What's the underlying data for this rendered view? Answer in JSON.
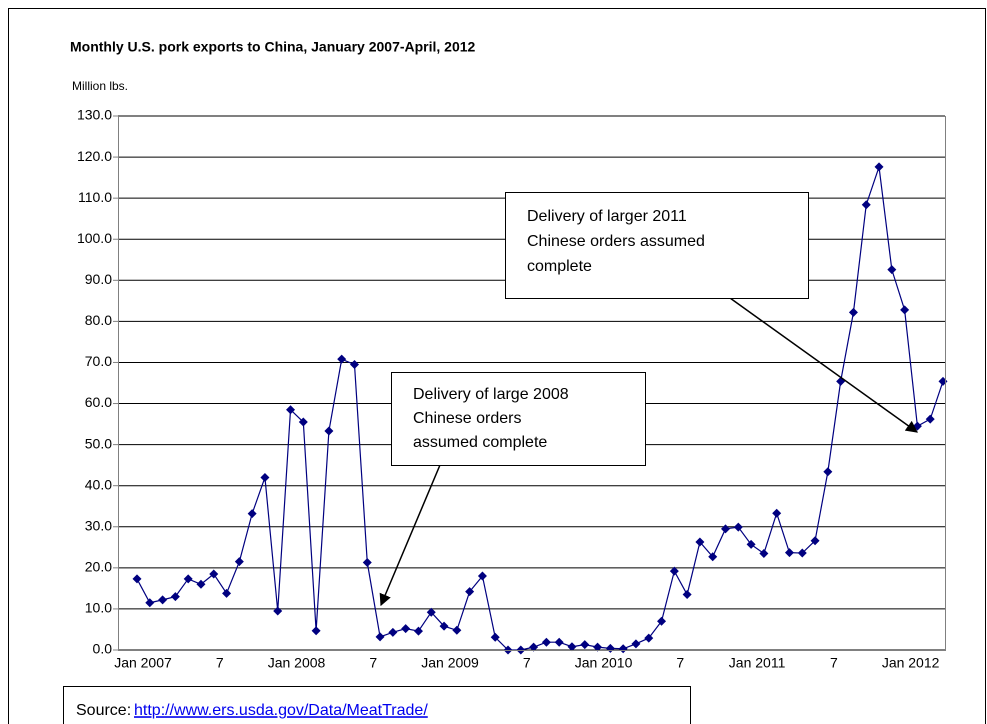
{
  "chart_data": {
    "type": "line",
    "title": "Monthly U.S. pork exports to China, January 2007-April, 2012",
    "ylabel": "Million lbs.",
    "categories": [
      "Jan 2007",
      null,
      null,
      null,
      null,
      null,
      "7",
      null,
      null,
      null,
      null,
      null,
      "Jan 2008",
      null,
      null,
      null,
      null,
      null,
      "7",
      null,
      null,
      null,
      null,
      null,
      "Jan 2009",
      null,
      null,
      null,
      null,
      null,
      "7",
      null,
      null,
      null,
      null,
      null,
      "Jan 2010",
      null,
      null,
      null,
      null,
      null,
      "7",
      null,
      null,
      null,
      null,
      null,
      "Jan 2011",
      null,
      null,
      null,
      null,
      null,
      "7",
      null,
      null,
      null,
      null,
      null,
      "Jan 2012",
      null,
      null,
      null
    ],
    "series": [
      {
        "color": "#000080",
        "values": [
          17.3,
          11.5,
          12.2,
          13.0,
          17.3,
          16.0,
          18.5,
          13.8,
          21.5,
          33.2,
          42.0,
          9.5,
          58.5,
          55.5,
          4.7,
          53.3,
          70.8,
          69.5,
          21.3,
          3.2,
          4.3,
          5.2,
          4.6,
          9.2,
          5.8,
          4.8,
          14.2,
          18.0,
          3.1,
          0.0,
          0.0,
          0.7,
          1.9,
          1.9,
          0.8,
          1.3,
          0.7,
          0.4,
          0.3,
          1.5,
          2.9,
          7.0,
          19.2,
          13.5,
          26.3,
          22.7,
          29.5,
          29.9,
          25.7,
          23.5,
          33.3,
          23.7,
          23.6,
          26.6,
          43.4,
          65.4,
          82.2,
          108.4,
          117.6,
          92.6,
          82.8,
          54.5,
          56.2,
          65.4
        ]
      }
    ],
    "ylim": [
      0,
      130
    ],
    "yticks": [
      {
        "value": 0,
        "label": "0.0"
      },
      {
        "value": 10,
        "label": "10.0"
      },
      {
        "value": 20,
        "label": "20.0"
      },
      {
        "value": 30,
        "label": "30.0"
      },
      {
        "value": 40,
        "label": "40.0"
      },
      {
        "value": 50,
        "label": "50.0"
      },
      {
        "value": 60,
        "label": "60.0"
      },
      {
        "value": 70,
        "label": "70.0"
      },
      {
        "value": 80,
        "label": "80.0"
      },
      {
        "value": 90,
        "label": "90.0"
      },
      {
        "value": 100,
        "label": "100.0"
      },
      {
        "value": 110,
        "label": "110.0"
      },
      {
        "value": 120,
        "label": "120.0"
      },
      {
        "value": 130,
        "label": "130.0"
      }
    ],
    "grid": true,
    "annotations": [
      {
        "lines": [
          "Delivery of large 2008",
          "Chinese orders",
          "assumed complete"
        ]
      },
      {
        "lines": [
          "Delivery of larger 2011",
          "Chinese orders assumed",
          "complete"
        ]
      }
    ],
    "source": {
      "label": "Source:",
      "url": "http://www.ers.usda.gov/Data/MeatTrade/"
    }
  }
}
